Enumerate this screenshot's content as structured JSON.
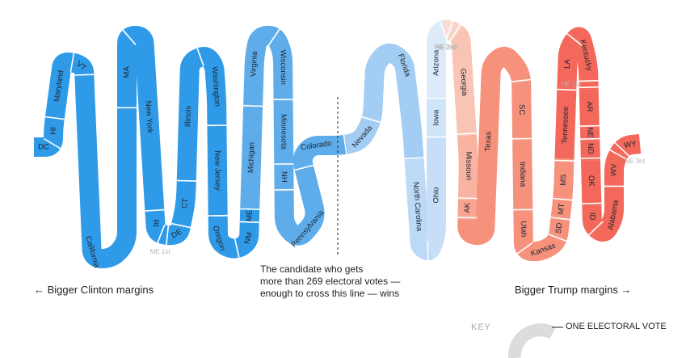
{
  "annotation": {
    "line1": "The candidate who gets",
    "line2": "more than 269 electoral votes —",
    "line3": "enough to cross this line — wins"
  },
  "left_label": "← Bigger Clinton margins",
  "right_label": "Bigger Trump margins →",
  "key": {
    "title": "KEY",
    "label": "ONE ELECTORAL VOTE",
    "unit_color": "#dcdcdc"
  },
  "chart_data": {
    "type": "diagram",
    "colors": {
      "clinton_strong": "#2f9be8",
      "clinton_lean": "#5eadea",
      "clinton_tilt": "#a4cdf4",
      "tossup_blue": "#d2e6fa",
      "trump_tilt": "#f9c4b4",
      "trump_lean": "#f6917c",
      "trump_strong": "#f3685a",
      "outside_label": "#b7b7b7"
    },
    "states": [
      {
        "label": "DC",
        "ev": 3,
        "color": "#2f9be8"
      },
      {
        "label": "HI",
        "ev": 4,
        "color": "#2f9be8"
      },
      {
        "label": "Maryland",
        "ev": 10,
        "color": "#2f9be8"
      },
      {
        "label": "VT",
        "ev": 3,
        "color": "#2f9be8"
      },
      {
        "label": "California",
        "ev": 55,
        "color": "#2f9be8"
      },
      {
        "label": "MA",
        "ev": 11,
        "color": "#2f9be8"
      },
      {
        "label": "New York",
        "ev": 29,
        "color": "#2f9be8"
      },
      {
        "label": "RI",
        "ev": 4,
        "color": "#2f9be8"
      },
      {
        "label": "ME 1st",
        "ev": 1,
        "color": "#2f9be8"
      },
      {
        "label": "DE",
        "ev": 3,
        "color": "#2f9be8"
      },
      {
        "label": "CT",
        "ev": 7,
        "color": "#2f9be8"
      },
      {
        "label": "Illinois",
        "ev": 20,
        "color": "#2f9be8"
      },
      {
        "label": "Washington",
        "ev": 12,
        "color": "#2f9be8"
      },
      {
        "label": "New Jersey",
        "ev": 14,
        "color": "#2f9be8"
      },
      {
        "label": "Oregon",
        "ev": 7,
        "color": "#2f9be8"
      },
      {
        "label": "NM",
        "ev": 5,
        "color": "#2f9be8"
      },
      {
        "label": "ME",
        "ev": 2,
        "color": "#2f9be8"
      },
      {
        "label": "Michigan",
        "ev": 16,
        "color": "#5eadea"
      },
      {
        "label": "Virginia",
        "ev": 13,
        "color": "#5eadea"
      },
      {
        "label": "Wisconsin",
        "ev": 10,
        "color": "#5eadea"
      },
      {
        "label": "Minnesota",
        "ev": 10,
        "color": "#5eadea"
      },
      {
        "label": "NH",
        "ev": 4,
        "color": "#5eadea"
      },
      {
        "label": "Pennsylvania",
        "ev": 20,
        "color": "#5eadea"
      },
      {
        "label": "Colorado",
        "ev": 9,
        "color": "#5eadea"
      },
      {
        "label": "Nevada",
        "ev": 6,
        "color": "#a4cdf4"
      },
      {
        "label": "Florida",
        "ev": 29,
        "color": "#a4cdf4"
      },
      {
        "label": "North Carolina",
        "ev": 15,
        "color": "#bcd9f6"
      },
      {
        "label": "Ohio",
        "ev": 18,
        "color": "#c6def8"
      },
      {
        "label": "Iowa",
        "ev": 6,
        "color": "#cfe3f9"
      },
      {
        "label": "Arizona",
        "ev": 11,
        "color": "#dceafa"
      },
      {
        "label": "ME 2nd",
        "ev": 1,
        "color": "#fbdcd3"
      },
      {
        "label": "NE 2nd",
        "ev": 1,
        "color": "#fbd4c8"
      },
      {
        "label": "Georgia",
        "ev": 16,
        "color": "#f9c4b4"
      },
      {
        "label": "Missouri",
        "ev": 10,
        "color": "#f8b3a1"
      },
      {
        "label": "AK",
        "ev": 3,
        "color": "#f7a490"
      },
      {
        "label": "Texas",
        "ev": 38,
        "color": "#f6917c"
      },
      {
        "label": "SC",
        "ev": 9,
        "color": "#f6917c"
      },
      {
        "label": "Indiana",
        "ev": 11,
        "color": "#f6917c"
      },
      {
        "label": "Utah",
        "ev": 6,
        "color": "#f6917c"
      },
      {
        "label": "Kansas",
        "ev": 6,
        "color": "#f6917c"
      },
      {
        "label": "SD",
        "ev": 3,
        "color": "#f6917c"
      },
      {
        "label": "MT",
        "ev": 3,
        "color": "#f6917c"
      },
      {
        "label": "MS",
        "ev": 6,
        "color": "#f6917c"
      },
      {
        "label": "Tennessee",
        "ev": 11,
        "color": "#f3685a"
      },
      {
        "label": "LA",
        "ev": 8,
        "color": "#f3685a"
      },
      {
        "label": "Kentucky",
        "ev": 8,
        "color": "#f3685a"
      },
      {
        "label": "NE 1st",
        "ev": 1,
        "color": "#f3685a"
      },
      {
        "label": "AR",
        "ev": 6,
        "color": "#f3685a"
      },
      {
        "label": "NE",
        "ev": 2,
        "color": "#f3685a"
      },
      {
        "label": "ND",
        "ev": 3,
        "color": "#f3685a"
      },
      {
        "label": "OK",
        "ev": 7,
        "color": "#f3685a"
      },
      {
        "label": "ID",
        "ev": 4,
        "color": "#f3685a"
      },
      {
        "label": "Alabama",
        "ev": 9,
        "color": "#f3685a"
      },
      {
        "label": "WV",
        "ev": 5,
        "color": "#f3685a"
      },
      {
        "label": "NE 3rd",
        "ev": 1,
        "color": "#f3685a"
      },
      {
        "label": "WY",
        "ev": 3,
        "color": "#f3685a"
      }
    ],
    "threshold_ev": 269
  }
}
